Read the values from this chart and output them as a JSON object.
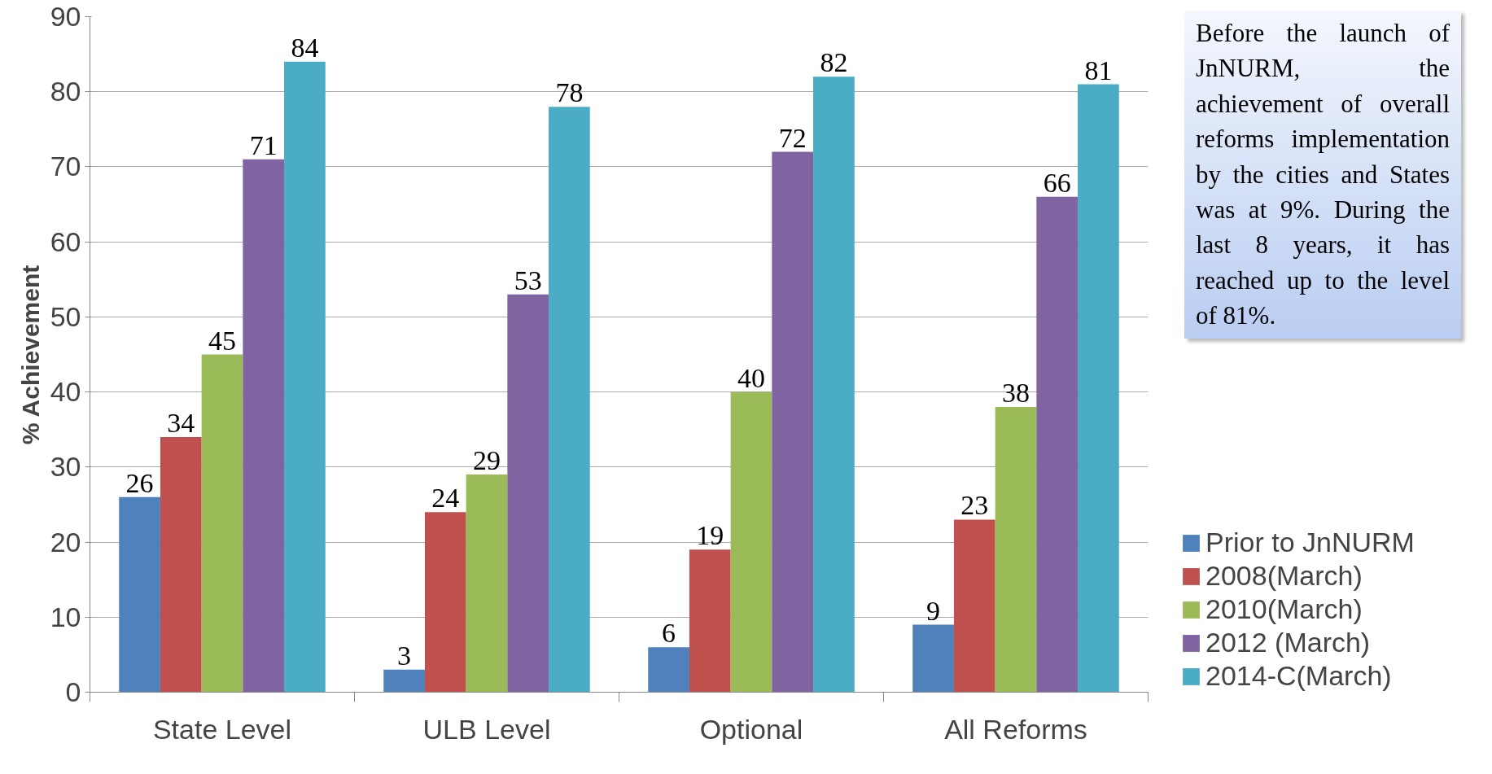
{
  "chart_data": {
    "type": "bar",
    "ylabel": "% Achievement",
    "categories": [
      "State Level",
      "ULB Level",
      "Optional",
      "All Reforms"
    ],
    "series": [
      {
        "name": "Prior to JnNURM",
        "color": "#4f81bd",
        "values": [
          26,
          3,
          6,
          9
        ]
      },
      {
        "name": "2008(March)",
        "color": "#c0504d",
        "values": [
          34,
          24,
          19,
          23
        ]
      },
      {
        "name": "2010(March)",
        "color": "#9bbb59",
        "values": [
          45,
          29,
          40,
          38
        ]
      },
      {
        "name": "2012 (March)",
        "color": "#8064a2",
        "values": [
          71,
          53,
          72,
          66
        ]
      },
      {
        "name": "2014-C(March)",
        "color": "#4bacc6",
        "values": [
          84,
          78,
          82,
          81
        ]
      }
    ],
    "ylim": [
      0,
      90
    ],
    "yticks": [
      0,
      10,
      20,
      30,
      40,
      50,
      60,
      70,
      80,
      90
    ],
    "grid": "y",
    "legend": "bottom right",
    "data_labels": true,
    "annotations": [
      "Before the launch of JnNURM, the achievement of overall reforms implementation by the cities and States was at 9%. During the last 8 years, it has reached up to the level of 81%."
    ]
  }
}
